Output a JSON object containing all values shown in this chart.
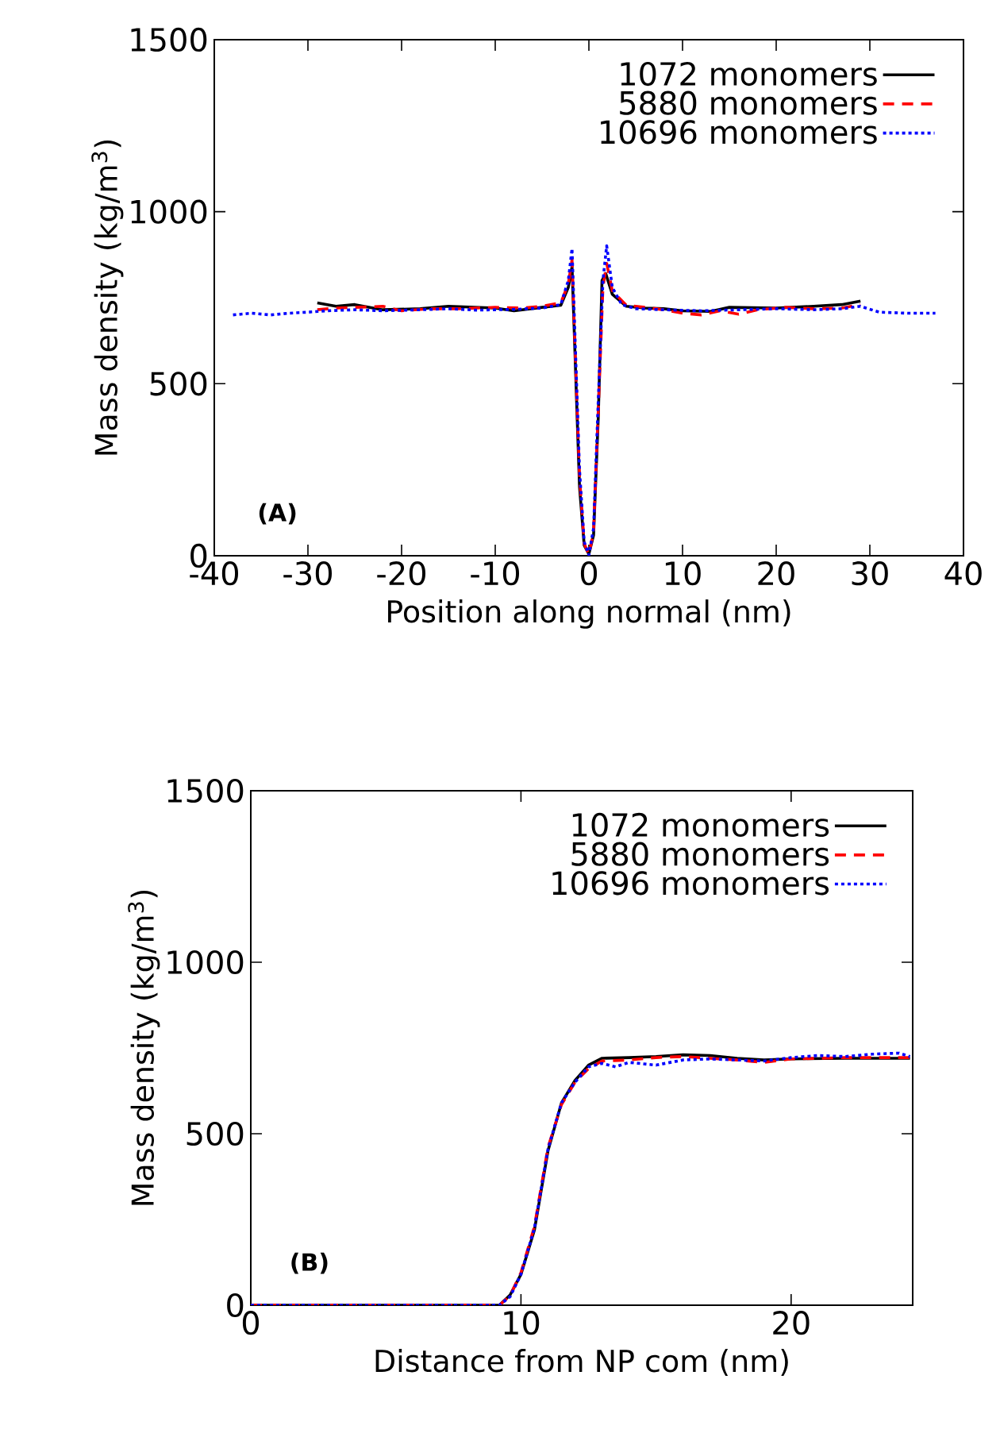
{
  "chart_data": [
    {
      "type": "line",
      "xlabel": "Position along normal (nm)",
      "ylabel": "Mass density (kg/m$^{3}$)",
      "xlim": [
        -40,
        40
      ],
      "ylim": [
        0,
        1500
      ],
      "xticks": [
        -40,
        -30,
        -20,
        -10,
        0,
        10,
        20,
        30,
        40
      ],
      "yticks": [
        0,
        500,
        1000,
        1500
      ],
      "legend": "top right",
      "annotations": [
        "(A)"
      ],
      "series": [
        {
          "name": "1072 monomers",
          "color": "#000000",
          "line_style": "solid",
          "x": [
            -29,
            -27,
            -25,
            -22,
            -18,
            -15,
            -10,
            -8,
            -5,
            -3,
            -2.2,
            -1.8,
            -1.5,
            -1.0,
            -0.5,
            0,
            0.5,
            1.0,
            1.4,
            1.8,
            2.5,
            4,
            6,
            8,
            10,
            13,
            15,
            20,
            24,
            27,
            29
          ],
          "values": [
            735,
            725,
            730,
            715,
            718,
            725,
            720,
            712,
            722,
            728,
            780,
            840,
            600,
            200,
            30,
            5,
            60,
            400,
            800,
            820,
            760,
            725,
            720,
            718,
            712,
            710,
            722,
            720,
            725,
            730,
            740
          ]
        },
        {
          "name": "5880 monomers",
          "color": "#ff0000",
          "line_style": "dashed",
          "x": [
            -29,
            -27,
            -25,
            -22,
            -20,
            -17,
            -14,
            -10,
            -7,
            -5,
            -3,
            -2.2,
            -1.8,
            -1.5,
            -1.0,
            -0.5,
            0,
            0.5,
            1.0,
            1.5,
            1.9,
            2.5,
            4,
            6,
            8,
            10,
            12,
            14,
            16,
            18,
            21,
            24,
            27,
            29
          ],
          "values": [
            715,
            720,
            722,
            725,
            712,
            718,
            718,
            722,
            720,
            725,
            735,
            790,
            860,
            620,
            230,
            35,
            3,
            70,
            420,
            780,
            850,
            770,
            728,
            722,
            715,
            705,
            700,
            712,
            702,
            715,
            722,
            718,
            720,
            730
          ]
        },
        {
          "name": "10696 monomers",
          "color": "#0000ff",
          "line_style": "dotted",
          "x": [
            -38,
            -36,
            -34,
            -32,
            -30,
            -28,
            -25,
            -22,
            -18,
            -15,
            -12,
            -8,
            -5,
            -3,
            -2.2,
            -1.8,
            -1.5,
            -1.0,
            -0.5,
            0,
            0.5,
            1.0,
            1.5,
            1.9,
            2.5,
            3.5,
            5,
            8,
            12,
            16,
            20,
            24,
            27,
            29,
            31,
            34,
            37
          ],
          "values": [
            700,
            705,
            700,
            705,
            708,
            712,
            715,
            712,
            715,
            718,
            714,
            716,
            720,
            730,
            800,
            893,
            650,
            250,
            40,
            2,
            80,
            450,
            800,
            901,
            780,
            730,
            718,
            715,
            712,
            715,
            718,
            715,
            718,
            725,
            708,
            705,
            705
          ]
        }
      ]
    },
    {
      "type": "line",
      "xlabel": "Distance from NP com (nm)",
      "ylabel": "Mass density (kg/m$^{3}$)",
      "xlim": [
        0,
        24.5
      ],
      "ylim": [
        0,
        1500
      ],
      "xticks": [
        0,
        10,
        20
      ],
      "yticks": [
        0,
        500,
        1000,
        1500
      ],
      "legend": "top right",
      "annotations": [
        "(B)"
      ],
      "series": [
        {
          "name": "1072 monomers",
          "color": "#000000",
          "line_style": "solid",
          "x": [
            0,
            9.2,
            9.6,
            10,
            10.5,
            11,
            11.5,
            12,
            12.5,
            13,
            14,
            15,
            16,
            17,
            18,
            19,
            20,
            22,
            24.4
          ],
          "values": [
            0,
            0,
            30,
            90,
            220,
            450,
            590,
            655,
            700,
            720,
            722,
            725,
            730,
            728,
            720,
            715,
            718,
            720,
            720
          ]
        },
        {
          "name": "5880 monomers",
          "color": "#ff0000",
          "line_style": "dashed",
          "x": [
            0,
            9.2,
            9.6,
            10,
            10.5,
            11,
            11.5,
            12,
            12.5,
            13,
            14,
            15,
            16,
            17,
            18,
            19,
            20,
            22,
            24.4
          ],
          "values": [
            0,
            0,
            28,
            95,
            230,
            460,
            585,
            650,
            690,
            712,
            715,
            722,
            725,
            720,
            715,
            708,
            718,
            722,
            722
          ]
        },
        {
          "name": "10696 monomers",
          "color": "#0000ff",
          "line_style": "dotted",
          "x": [
            0,
            9.2,
            9.6,
            10,
            10.5,
            11,
            11.5,
            12,
            12.5,
            13,
            13.5,
            14,
            15,
            16,
            17,
            18,
            19,
            20,
            21,
            22,
            23,
            24,
            24.4
          ],
          "values": [
            0,
            0,
            25,
            90,
            225,
            455,
            590,
            650,
            695,
            705,
            695,
            708,
            700,
            715,
            718,
            715,
            712,
            722,
            728,
            725,
            732,
            735,
            725
          ]
        }
      ]
    }
  ]
}
